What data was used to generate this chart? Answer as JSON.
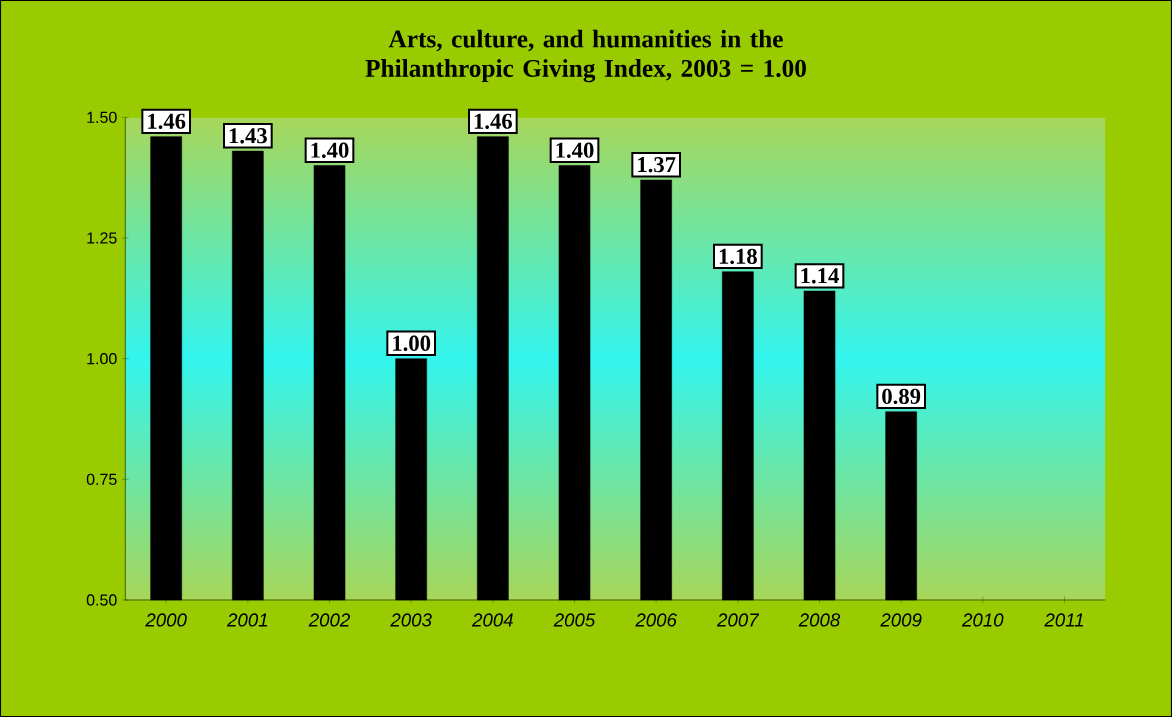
{
  "chart_data": {
    "type": "bar",
    "title": "Arts, culture, and humanities in the Philanthropic Giving Index, 2003 = 1.00",
    "categories": [
      "2000",
      "2001",
      "2002",
      "2003",
      "2004",
      "2005",
      "2006",
      "2007",
      "2008",
      "2009",
      "2010",
      "2011"
    ],
    "values": [
      1.46,
      1.43,
      1.4,
      1.0,
      1.46,
      1.4,
      1.37,
      1.18,
      1.14,
      0.89,
      null,
      null
    ],
    "value_labels": [
      "1.46",
      "1.43",
      "1.40",
      "1.00",
      "1.46",
      "1.40",
      "1.37",
      "1.18",
      "1.14",
      "0.89",
      null,
      null
    ],
    "color": "#000000",
    "ylim": [
      0.5,
      1.5
    ],
    "yticks": [
      {
        "value": 0.5,
        "label": "0.50"
      },
      {
        "value": 0.75,
        "label": "0.75"
      },
      {
        "value": 1.0,
        "label": "1.00"
      },
      {
        "value": 1.25,
        "label": "1.25"
      },
      {
        "value": 1.5,
        "label": "1.50"
      }
    ],
    "grid": false
  }
}
